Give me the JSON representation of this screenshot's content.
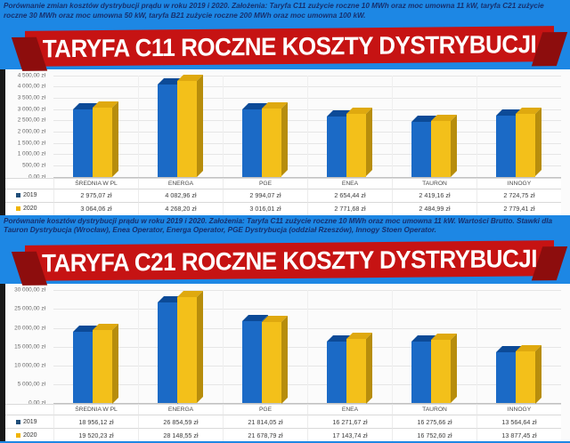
{
  "notes": {
    "top": "Porównanie zmian kosztów dystrybucji prądu w roku 2019 i 2020. Założenia: Taryfa C11 zużycie roczne 10 MWh oraz moc umowna 11 kW, taryfa C21 zużycie roczne 30 MWh oraz moc umowna 50 kW, taryfa B21 zużycie roczne 200 MWh oraz moc umowna 100 kW.",
    "middle": "Porównanie kosztów dystrybucji prądu w roku 2019 i 2020. Założenia: Taryfa C11 zużycie roczne 10 MWh oraz moc umowna 11 kW. Wartości Brutto. Stawki dla Tauron Dystrybucja (Wrocław), Enea Operator, Energa Operator, PGE Dystrybucja (oddział Rzeszów), Innogy Stoen Operator."
  },
  "colors": {
    "page_background": "#1d87e4",
    "banner_red": "#c61313",
    "banner_red_dark": "#8d0d0d",
    "bar_blue": "#1b6ac6",
    "bar_yellow": "#f3c01a"
  },
  "chart_data": [
    {
      "type": "bar",
      "title": "TARYFA C11 ROCZNE KOSZTY DYSTRYBUCJI",
      "categories": [
        "ŚREDNIA W PL",
        "ENERGA",
        "PGE",
        "ENEA",
        "TAURON",
        "INNOGY"
      ],
      "series": [
        {
          "name": "2019",
          "color": "#1b6ac6",
          "top_color": "#0c4a97",
          "side_color": "#11519e",
          "swatch": "#1f4e79",
          "values": [
            2975.07,
            4082.96,
            2994.07,
            2654.44,
            2419.16,
            2724.75
          ],
          "value_labels": [
            "2 975,07 zł",
            "4 082,96 zł",
            "2 994,07 zł",
            "2 654,44 zł",
            "2 419,16 zł",
            "2 724,75 zł"
          ]
        },
        {
          "name": "2020",
          "color": "#f3c01a",
          "top_color": "#dfa90f",
          "side_color": "#b78d0c",
          "swatch": "#f0b400",
          "values": [
            3064.06,
            4268.2,
            3016.01,
            2771.68,
            2484.99,
            2779.41
          ],
          "value_labels": [
            "3 064,06 zł",
            "4 268,20 zł",
            "3 016,01 zł",
            "2 771,68 zł",
            "2 484,99 zł",
            "2 779,41 zł"
          ]
        }
      ],
      "ylim": [
        0,
        4500
      ],
      "unit": "zł",
      "grid": true,
      "legend_position": "table-left",
      "yticks": [
        {
          "v": 4500,
          "label": "4 500,00 zł"
        },
        {
          "v": 4000,
          "label": "4 000,00 zł"
        },
        {
          "v": 3500,
          "label": "3 500,00 zł"
        },
        {
          "v": 3000,
          "label": "3 000,00 zł"
        },
        {
          "v": 2500,
          "label": "2 500,00 zł"
        },
        {
          "v": 2000,
          "label": "2 000,00 zł"
        },
        {
          "v": 1500,
          "label": "1 500,00 zł"
        },
        {
          "v": 1000,
          "label": "1 000,00 zł"
        },
        {
          "v": 500,
          "label": "500,00 zł"
        },
        {
          "v": 0,
          "label": "0,00 zł"
        }
      ]
    },
    {
      "type": "bar",
      "title": "TARYFA C21 ROCZNE KOSZTY DYSTRYBUCJI",
      "categories": [
        "ŚREDNIA W PL",
        "ENERGA",
        "PGE",
        "ENEA",
        "TAURON",
        "INNOGY"
      ],
      "series": [
        {
          "name": "2019",
          "color": "#1b6ac6",
          "top_color": "#0c4a97",
          "side_color": "#11519e",
          "swatch": "#1f4e79",
          "values": [
            18956.12,
            26854.59,
            21814.05,
            16271.67,
            16275.66,
            13564.64
          ],
          "value_labels": [
            "18 956,12 zł",
            "26 854,59 zł",
            "21 814,05 zł",
            "16 271,67 zł",
            "16 275,66 zł",
            "13 564,64 zł"
          ]
        },
        {
          "name": "2020",
          "color": "#f3c01a",
          "top_color": "#dfa90f",
          "side_color": "#b78d0c",
          "swatch": "#f0b400",
          "values": [
            19520.23,
            28148.55,
            21678.79,
            17143.74,
            16752.6,
            13877.45
          ],
          "value_labels": [
            "19 520,23 zł",
            "28 148,55 zł",
            "21 678,79 zł",
            "17 143,74 zł",
            "16 752,60 zł",
            "13 877,45 zł"
          ]
        }
      ],
      "ylim": [
        0,
        30000
      ],
      "unit": "zł",
      "grid": true,
      "legend_position": "table-left",
      "yticks": [
        {
          "v": 30000,
          "label": "30 000,00 zł"
        },
        {
          "v": 25000,
          "label": "25 000,00 zł"
        },
        {
          "v": 20000,
          "label": "20 000,00 zł"
        },
        {
          "v": 15000,
          "label": "15 000,00 zł"
        },
        {
          "v": 10000,
          "label": "10 000,00 zł"
        },
        {
          "v": 5000,
          "label": "5 000,00 zł"
        },
        {
          "v": 0,
          "label": "0,00 zł"
        }
      ]
    }
  ]
}
